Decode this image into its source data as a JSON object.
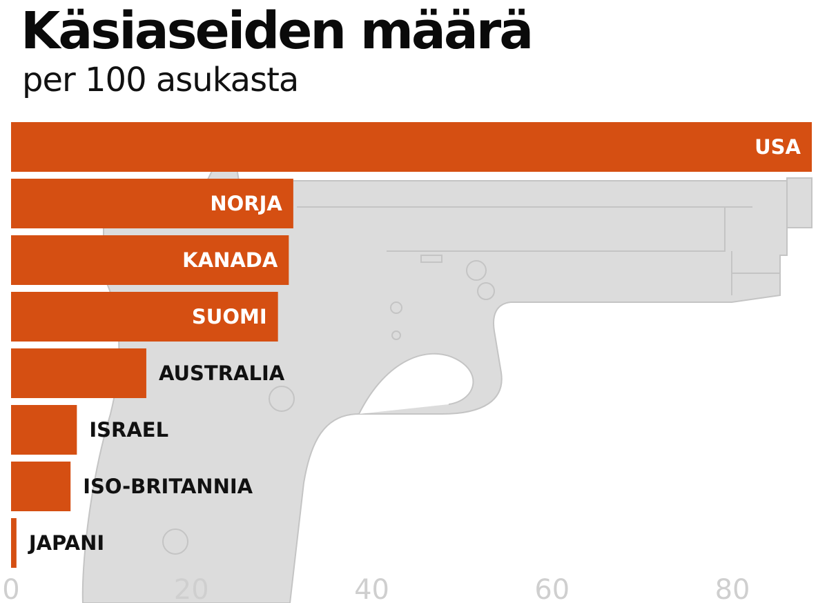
{
  "header": {
    "title": "Käsiaseiden määrä",
    "subtitle": "per 100 asukasta"
  },
  "colors": {
    "bar": "#d54f12",
    "label_on_bar": "#ffffff",
    "label_off_bar": "#111111",
    "tick": "#cfcfcf",
    "pistol": "#dcdcdc"
  },
  "background_icon": "pistol-silhouette",
  "chart_data": {
    "type": "bar",
    "orientation": "horizontal",
    "title": "Käsiaseiden määrä",
    "subtitle": "per 100 asukasta",
    "categories": [
      "USA",
      "NORJA",
      "KANADA",
      "SUOMI",
      "AUSTRALIA",
      "ISRAEL",
      "ISO-BRITANNIA",
      "JAPANI"
    ],
    "values": [
      88.8,
      31.3,
      30.8,
      29.6,
      15.0,
      7.3,
      6.6,
      0.6
    ],
    "xlim": [
      0,
      88.8
    ],
    "xticks": [
      0,
      20,
      40,
      60,
      80
    ],
    "grid": false,
    "legend": "none"
  }
}
